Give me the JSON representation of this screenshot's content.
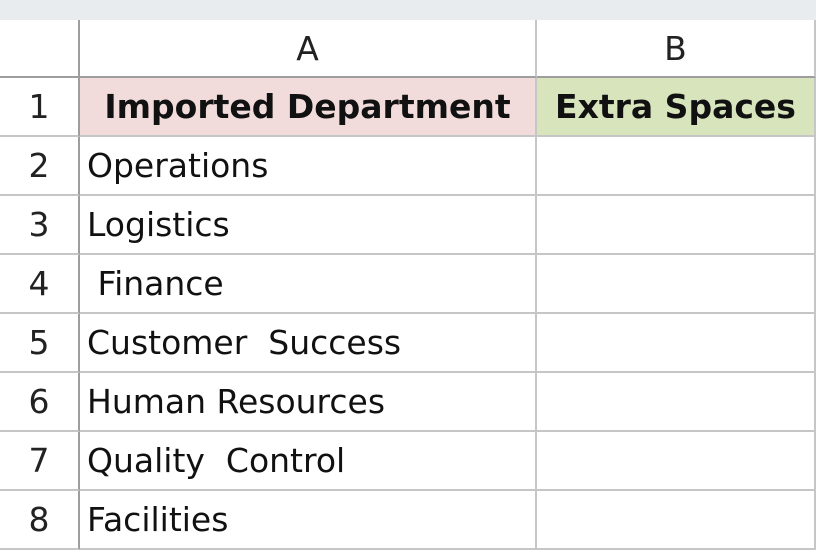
{
  "column_headers": [
    "A",
    "B"
  ],
  "header_row": {
    "number": "1",
    "cells": [
      "Imported Department",
      "Extra Spaces"
    ]
  },
  "rows": [
    {
      "number": "2",
      "department": "Operations"
    },
    {
      "number": "3",
      "department": "Logistics"
    },
    {
      "number": "4",
      "department": " Finance"
    },
    {
      "number": "5",
      "department": "Customer  Success"
    },
    {
      "number": "6",
      "department": "Human Resources"
    },
    {
      "number": "7",
      "department": "Quality  Control"
    },
    {
      "number": "8",
      "department": "Facilities"
    }
  ]
}
